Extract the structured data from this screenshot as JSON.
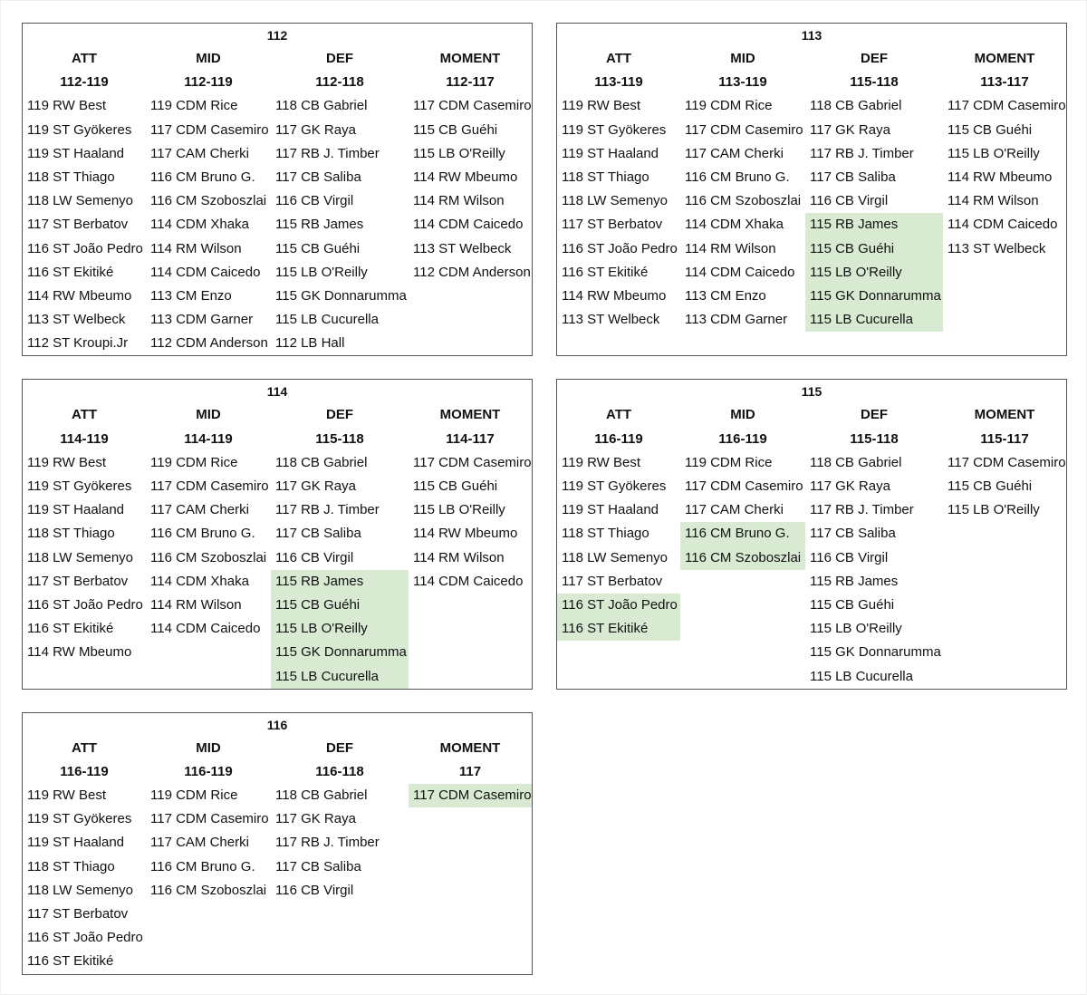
{
  "panels": [
    {
      "title": "112",
      "columns": [
        {
          "header": "ATT",
          "range": "112-119",
          "items": [
            "119 RW Best",
            "119 ST Gyökeres",
            "119 ST Haaland",
            "118 ST Thiago",
            "118 LW Semenyo",
            "117 ST Berbatov",
            "116 ST João Pedro",
            "116 ST Ekitiké",
            "114 RW Mbeumo",
            "113 ST Welbeck",
            "112 ST Kroupi.Jr"
          ],
          "highlighted": []
        },
        {
          "header": "MID",
          "range": "112-119",
          "items": [
            "119 CDM Rice",
            "117 CDM Casemiro",
            "117 CAM Cherki",
            "116 CM Bruno G.",
            "116 CM Szoboszlai",
            "114 CDM Xhaka",
            "114 RM Wilson",
            "114 CDM Caicedo",
            "113 CM Enzo",
            "113 CDM Garner",
            "112 CDM Anderson"
          ],
          "highlighted": []
        },
        {
          "header": "DEF",
          "range": "112-118",
          "items": [
            "118 CB Gabriel",
            "117 GK Raya",
            "117 RB J. Timber",
            "117 CB Saliba",
            "116 CB Virgil",
            "115 RB James",
            "115 CB Guéhi",
            "115 LB O'Reilly",
            "115 GK Donnarumma",
            "115 LB Cucurella",
            "112 LB Hall"
          ],
          "highlighted": []
        },
        {
          "header": "MOMENT",
          "range": "112-117",
          "items": [
            "117 CDM Casemiro",
            "115 CB Guéhi",
            "115 LB O'Reilly",
            "114 RW Mbeumo",
            "114 RM Wilson",
            "114 CDM Caicedo",
            "113 ST Welbeck",
            "112 CDM Anderson"
          ],
          "highlighted": []
        }
      ]
    },
    {
      "title": "113",
      "columns": [
        {
          "header": "ATT",
          "range": "113-119",
          "items": [
            "119 RW Best",
            "119 ST Gyökeres",
            "119 ST Haaland",
            "118 ST Thiago",
            "118 LW Semenyo",
            "117 ST Berbatov",
            "116 ST João Pedro",
            "116 ST Ekitiké",
            "114 RW Mbeumo",
            "113 ST Welbeck"
          ],
          "highlighted": []
        },
        {
          "header": "MID",
          "range": "113-119",
          "items": [
            "119 CDM Rice",
            "117 CDM Casemiro",
            "117 CAM Cherki",
            "116 CM Bruno G.",
            "116 CM Szoboszlai",
            "114 CDM Xhaka",
            "114 RM Wilson",
            "114 CDM Caicedo",
            "113 CM Enzo",
            "113 CDM Garner"
          ],
          "highlighted": []
        },
        {
          "header": "DEF",
          "range": "115-118",
          "items": [
            "118 CB Gabriel",
            "117 GK Raya",
            "117 RB J. Timber",
            "117 CB Saliba",
            "116 CB Virgil",
            "115 RB James",
            "115 CB Guéhi",
            "115 LB O'Reilly",
            "115 GK Donnarumma",
            "115 LB Cucurella"
          ],
          "highlighted": [
            5,
            6,
            7,
            8,
            9
          ]
        },
        {
          "header": "MOMENT",
          "range": "113-117",
          "items": [
            "117 CDM Casemiro",
            "115 CB Guéhi",
            "115 LB O'Reilly",
            "114 RW Mbeumo",
            "114 RM Wilson",
            "114 CDM Caicedo",
            "113 ST Welbeck"
          ],
          "highlighted": []
        }
      ]
    },
    {
      "title": "114",
      "columns": [
        {
          "header": "ATT",
          "range": "114-119",
          "items": [
            "119 RW Best",
            "119 ST Gyökeres",
            "119 ST Haaland",
            "118 ST Thiago",
            "118 LW Semenyo",
            "117 ST Berbatov",
            "116 ST João Pedro",
            "116 ST Ekitiké",
            "114 RW Mbeumo"
          ],
          "highlighted": []
        },
        {
          "header": "MID",
          "range": "114-119",
          "items": [
            "119 CDM Rice",
            "117 CDM Casemiro",
            "117 CAM Cherki",
            "116 CM Bruno G.",
            "116 CM Szoboszlai",
            "114 CDM Xhaka",
            "114 RM Wilson",
            "114 CDM Caicedo"
          ],
          "highlighted": []
        },
        {
          "header": "DEF",
          "range": "115-118",
          "items": [
            "118 CB Gabriel",
            "117 GK Raya",
            "117 RB J. Timber",
            "117 CB Saliba",
            "116 CB Virgil",
            "115 RB James",
            "115 CB Guéhi",
            "115 LB O'Reilly",
            "115 GK Donnarumma",
            "115 LB Cucurella"
          ],
          "highlighted": [
            5,
            6,
            7,
            8,
            9
          ]
        },
        {
          "header": "MOMENT",
          "range": "114-117",
          "items": [
            "117 CDM Casemiro",
            "115 CB Guéhi",
            "115 LB O'Reilly",
            "114 RW Mbeumo",
            "114 RM Wilson",
            "114 CDM Caicedo"
          ],
          "highlighted": []
        }
      ]
    },
    {
      "title": "115",
      "columns": [
        {
          "header": "ATT",
          "range": "116-119",
          "items": [
            "119 RW Best",
            "119 ST Gyökeres",
            "119 ST Haaland",
            "118 ST Thiago",
            "118 LW Semenyo",
            "117 ST Berbatov",
            "116 ST João Pedro",
            "116 ST Ekitiké"
          ],
          "highlighted": [
            6,
            7
          ]
        },
        {
          "header": "MID",
          "range": "116-119",
          "items": [
            "119 CDM Rice",
            "117 CDM Casemiro",
            "117 CAM Cherki",
            "116 CM Bruno G.",
            "116 CM Szoboszlai"
          ],
          "highlighted": [
            3,
            4
          ]
        },
        {
          "header": "DEF",
          "range": "115-118",
          "items": [
            "118 CB Gabriel",
            "117 GK Raya",
            "117 RB J. Timber",
            "117 CB Saliba",
            "116 CB Virgil",
            "115 RB James",
            "115 CB Guéhi",
            "115 LB O'Reilly",
            "115 GK Donnarumma",
            "115 LB Cucurella"
          ],
          "highlighted": []
        },
        {
          "header": "MOMENT",
          "range": "115-117",
          "items": [
            "117 CDM Casemiro",
            "115 CB Guéhi",
            "115 LB O'Reilly"
          ],
          "highlighted": []
        }
      ]
    },
    {
      "title": "116",
      "columns": [
        {
          "header": "ATT",
          "range": "116-119",
          "items": [
            "119 RW Best",
            "119 ST Gyökeres",
            "119 ST Haaland",
            "118 ST Thiago",
            "118 LW Semenyo",
            "117 ST Berbatov",
            "116 ST João Pedro",
            "116 ST Ekitiké"
          ],
          "highlighted": []
        },
        {
          "header": "MID",
          "range": "116-119",
          "items": [
            "119 CDM Rice",
            "117 CDM Casemiro",
            "117 CAM Cherki",
            "116 CM Bruno G.",
            "116 CM Szoboszlai"
          ],
          "highlighted": []
        },
        {
          "header": "DEF",
          "range": "116-118",
          "items": [
            "118 CB Gabriel",
            "117 GK Raya",
            "117 RB J. Timber",
            "117 CB Saliba",
            "116 CB Virgil"
          ],
          "highlighted": []
        },
        {
          "header": "MOMENT",
          "range": "117",
          "items": [
            "117 CDM Casemiro"
          ],
          "highlighted": [
            0
          ]
        }
      ]
    }
  ]
}
